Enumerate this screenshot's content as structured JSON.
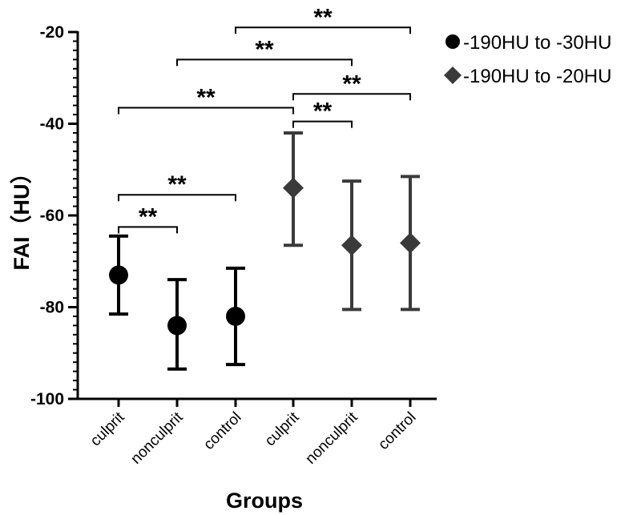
{
  "chart_data": {
    "type": "scatter",
    "xlabel": "Groups",
    "ylabel": "FAI（HU）",
    "ylim": [
      -100,
      -20
    ],
    "yticks": [
      -20,
      -40,
      -60,
      -80,
      -100
    ],
    "y_minor_step": 2,
    "grid": false,
    "legend_position": "top-right",
    "categories": [
      "culprit",
      "nonculprit",
      "control",
      "culprit",
      "nonculprit",
      "control"
    ],
    "series": [
      {
        "name": "-190HU to -30HU",
        "marker": "circle",
        "color": "#000000",
        "points": [
          {
            "mean": -73.0,
            "upper": -64.5,
            "lower": -81.5
          },
          {
            "mean": -84.0,
            "upper": -74.0,
            "lower": -93.5
          },
          {
            "mean": -82.0,
            "upper": -71.5,
            "lower": -92.5
          }
        ]
      },
      {
        "name": "-190HU to -20HU",
        "marker": "diamond",
        "color": "#3a3a3a",
        "points": [
          {
            "mean": -54.0,
            "upper": -42.0,
            "lower": -66.5
          },
          {
            "mean": -66.5,
            "upper": -52.5,
            "lower": -80.5
          },
          {
            "mean": -66.0,
            "upper": -51.5,
            "lower": -80.5
          }
        ]
      }
    ],
    "annotations": [
      {
        "from": 0,
        "to": 1,
        "y": -62.5,
        "label": "**"
      },
      {
        "from": 0,
        "to": 2,
        "y": -55.5,
        "label": "**"
      },
      {
        "from": 0,
        "to": 3,
        "y": -36.5,
        "label": "**"
      },
      {
        "from": 1,
        "to": 4,
        "y": -26.0,
        "label": "**"
      },
      {
        "from": 2,
        "to": 5,
        "y": -19.0,
        "label": "**"
      },
      {
        "from": 3,
        "to": 4,
        "y": -39.5,
        "label": "**"
      },
      {
        "from": 3,
        "to": 5,
        "y": -33.5,
        "label": "**"
      }
    ]
  }
}
